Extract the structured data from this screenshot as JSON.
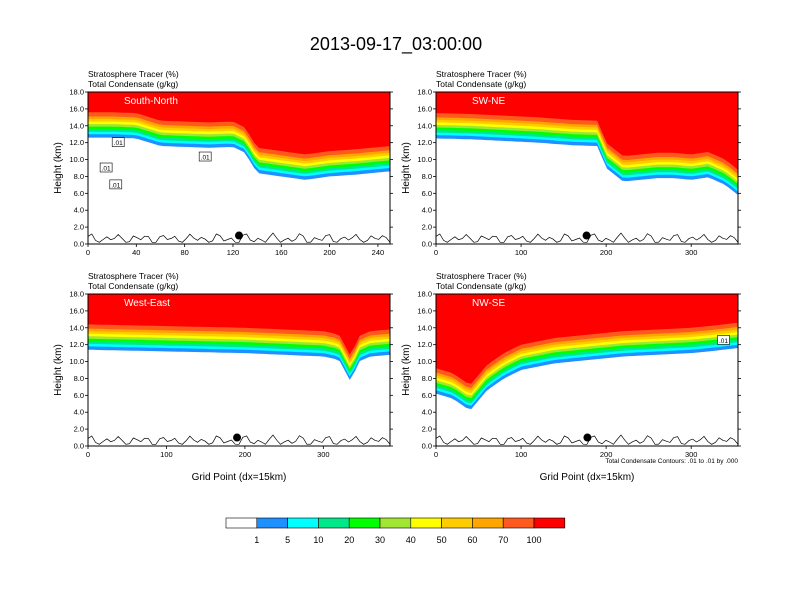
{
  "figure": {
    "title": "2013-09-17_03:00:00",
    "contour_note": "Total Condensate Contours: .01 to .01 by .000"
  },
  "colorbar": {
    "colors": [
      "#ffffff",
      "#1e90ff",
      "#00ffff",
      "#00e88a",
      "#00ff00",
      "#a0e632",
      "#ffff00",
      "#ffcc00",
      "#ffa500",
      "#ff5a1e",
      "#ff0000"
    ],
    "labels": [
      "1",
      "5",
      "10",
      "20",
      "30",
      "40",
      "50",
      "60",
      "70",
      "100"
    ]
  },
  "chart_data": [
    {
      "type": "heatmap",
      "label": "South-North",
      "title_line1": "Stratosphere Tracer   (%)",
      "title_line2": "Total Condensate   (g/kg)",
      "ylabel": "Height (km)",
      "xlabel": "",
      "xlim": [
        0,
        250
      ],
      "ylim": [
        0,
        18
      ],
      "xticks": [
        "0",
        "40",
        "80",
        "120",
        "160",
        "200",
        "240"
      ],
      "xtick_values": [
        0,
        40,
        80,
        120,
        160,
        200,
        240
      ],
      "yticks": [
        "0.0",
        "2.0",
        "4.0",
        "6.0",
        "8.0",
        "10.0",
        "12.0",
        "14.0",
        "16.0",
        "18.0"
      ],
      "tropopause_x": [
        0,
        20,
        40,
        60,
        80,
        100,
        120,
        130,
        140,
        160,
        180,
        200,
        220,
        250
      ],
      "tropopause_y": [
        15.6,
        15.6,
        15.5,
        14.6,
        14.5,
        14.4,
        14.5,
        13.8,
        11.4,
        11.0,
        10.6,
        11.0,
        11.2,
        11.6
      ],
      "contour_labels": [
        ".01",
        ".01",
        ".01",
        ".01"
      ],
      "contour_label_pos": [
        [
          15,
          9.0
        ],
        [
          25,
          12.0
        ],
        [
          97,
          10.3
        ],
        [
          23,
          7.0
        ]
      ],
      "marker": [
        125,
        1.0
      ]
    },
    {
      "type": "heatmap",
      "label": "SW-NE",
      "title_line1": "Stratosphere Tracer   (%)",
      "title_line2": "Total Condensate   (g/kg)",
      "ylabel": "Height (km)",
      "xlabel": "",
      "xlim": [
        0,
        355
      ],
      "ylim": [
        0,
        18
      ],
      "xticks": [
        "0",
        "100",
        "200",
        "300"
      ],
      "xtick_values": [
        0,
        100,
        200,
        300
      ],
      "yticks": [
        "0.0",
        "2.0",
        "4.0",
        "6.0",
        "8.0",
        "10.0",
        "12.0",
        "14.0",
        "16.0",
        "18.0"
      ],
      "tropopause_x": [
        0,
        40,
        80,
        120,
        160,
        190,
        200,
        220,
        240,
        260,
        280,
        300,
        320,
        340,
        355
      ],
      "tropopause_y": [
        15.5,
        15.4,
        15.2,
        15.0,
        14.7,
        14.6,
        12.0,
        10.4,
        10.6,
        10.8,
        10.8,
        10.6,
        10.9,
        10.0,
        8.8
      ],
      "contour_labels": [],
      "contour_label_pos": [],
      "marker": [
        177,
        1.0
      ]
    },
    {
      "type": "heatmap",
      "label": "West-East",
      "title_line1": "Stratosphere Tracer   (%)",
      "title_line2": "Total Condensate   (g/kg)",
      "ylabel": "Height (km)",
      "xlabel": "Grid Point (dx=15km)",
      "xlim": [
        0,
        385
      ],
      "ylim": [
        0,
        18
      ],
      "xticks": [
        "0",
        "100",
        "200",
        "300"
      ],
      "xtick_values": [
        0,
        100,
        200,
        300
      ],
      "yticks": [
        "0.0",
        "2.0",
        "4.0",
        "6.0",
        "8.0",
        "10.0",
        "12.0",
        "14.0",
        "16.0",
        "18.0"
      ],
      "tropopause_x": [
        0,
        50,
        100,
        150,
        200,
        250,
        300,
        320,
        335,
        345,
        360,
        385
      ],
      "tropopause_y": [
        14.4,
        14.3,
        14.2,
        14.1,
        14.0,
        13.8,
        13.6,
        13.2,
        10.6,
        13.0,
        13.6,
        13.8
      ],
      "contour_labels": [],
      "contour_label_pos": [],
      "marker": [
        190,
        1.0
      ]
    },
    {
      "type": "heatmap",
      "label": "NW-SE",
      "title_line1": "Stratosphere Tracer   (%)",
      "title_line2": "Total Condensate   (g/kg)",
      "ylabel": "Height (km)",
      "xlabel": "Grid Point (dx=15km)",
      "xlim": [
        0,
        355
      ],
      "ylim": [
        0,
        18
      ],
      "xticks": [
        "0",
        "100",
        "200",
        "300"
      ],
      "xtick_values": [
        0,
        100,
        200,
        300
      ],
      "yticks": [
        "0.0",
        "2.0",
        "4.0",
        "6.0",
        "8.0",
        "10.0",
        "12.0",
        "14.0",
        "16.0",
        "18.0"
      ],
      "tropopause_x": [
        0,
        20,
        40,
        60,
        80,
        100,
        140,
        180,
        220,
        260,
        300,
        330,
        355
      ],
      "tropopause_y": [
        9.2,
        8.6,
        7.2,
        9.6,
        11.0,
        12.0,
        12.8,
        13.2,
        13.6,
        13.8,
        14.0,
        14.3,
        14.6
      ],
      "contour_labels": [
        ".01"
      ],
      "contour_label_pos": [
        [
          338,
          12.5
        ]
      ],
      "marker": [
        178,
        1.0
      ]
    }
  ]
}
